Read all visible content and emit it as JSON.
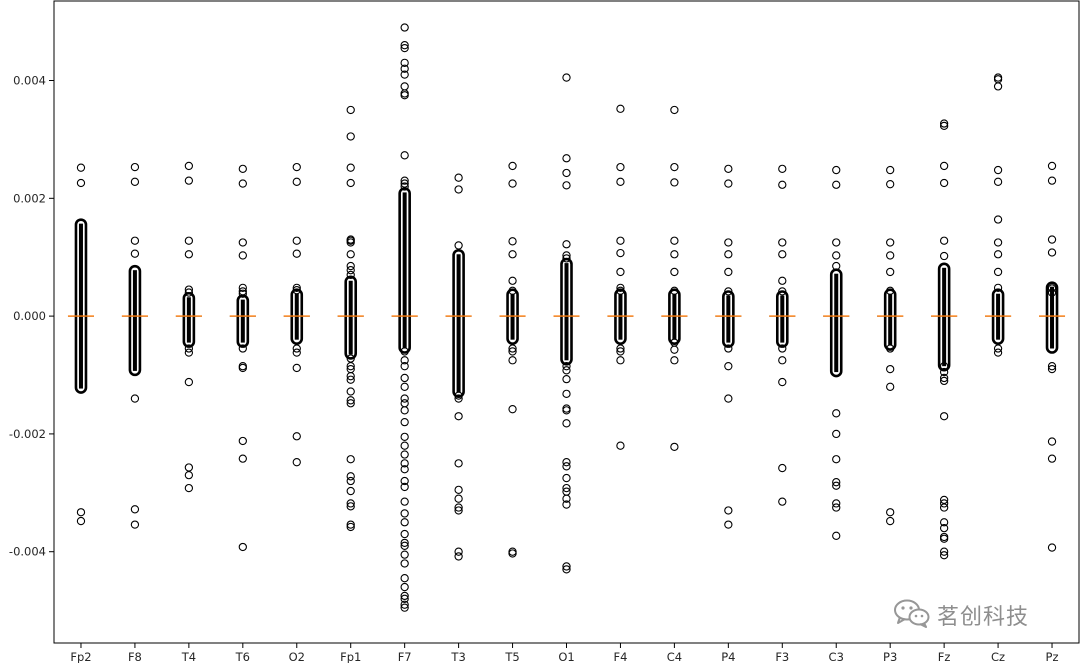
{
  "chart_data": {
    "type": "boxplot",
    "title": "",
    "xlabel": "",
    "ylabel": "",
    "ylim": [
      -0.00555,
      0.00535
    ],
    "yticks": [
      -0.004,
      -0.002,
      0.0,
      0.002,
      0.004
    ],
    "ytick_labels": [
      "-0.004",
      "-0.002",
      "0.000",
      "0.002",
      "0.004"
    ],
    "grid": false,
    "legend": "none",
    "colors": {
      "median": "#ff7f0e",
      "marker": "#000000",
      "axis": "#000000"
    },
    "categories": [
      "Fp2",
      "F8",
      "T4",
      "T6",
      "O2",
      "Fp1",
      "F7",
      "T3",
      "T5",
      "O1",
      "F4",
      "C4",
      "P4",
      "F3",
      "C3",
      "P3",
      "Fz",
      "Cz",
      "Pz"
    ],
    "boxes": [
      {
        "channel": "Fp2",
        "median": 0.0,
        "dense_range": [
          -0.00123,
          0.00157
        ],
        "outliers": [
          0.00252,
          0.00226,
          -0.00333,
          -0.00348
        ]
      },
      {
        "channel": "F8",
        "median": 0.0,
        "dense_range": [
          -0.00093,
          0.00078
        ],
        "outliers": [
          0.00253,
          0.00228,
          0.00128,
          0.00106,
          -0.0014,
          -0.00328,
          -0.00354
        ]
      },
      {
        "channel": "T4",
        "median": 0.0,
        "dense_range": [
          -0.00045,
          0.00032
        ],
        "outliers": [
          0.00255,
          0.0023,
          0.00128,
          0.00105,
          0.00045,
          0.0004,
          -0.00055,
          -0.00062,
          -0.00112,
          -0.00257,
          -0.0027,
          -0.00292
        ]
      },
      {
        "channel": "T6",
        "median": 0.0,
        "dense_range": [
          -0.00045,
          0.00028
        ],
        "outliers": [
          0.0025,
          0.00225,
          0.00125,
          0.00103,
          0.00048,
          0.00042,
          0.00038,
          -0.00055,
          -0.00085,
          -0.00088,
          -0.00212,
          -0.00242,
          -0.00392
        ]
      },
      {
        "channel": "O2",
        "median": 0.0,
        "dense_range": [
          -0.0004,
          0.00038
        ],
        "outliers": [
          0.00253,
          0.00228,
          0.00128,
          0.00106,
          0.00048,
          0.00044,
          -0.00055,
          -0.00062,
          -0.00088,
          -0.00204,
          -0.00248
        ]
      },
      {
        "channel": "Fp1",
        "median": 0.0,
        "dense_range": [
          -0.00065,
          0.0006
        ],
        "outliers": [
          0.0035,
          0.00305,
          0.00252,
          0.00226,
          0.0013,
          0.00128,
          0.00125,
          0.00105,
          0.00085,
          0.00078,
          0.0007,
          -0.00072,
          -0.00085,
          -0.0009,
          -0.00102,
          -0.00108,
          -0.00128,
          -0.00143,
          -0.00148,
          -0.00243,
          -0.00272,
          -0.0028,
          -0.00297,
          -0.00318,
          -0.00323,
          -0.00354,
          -0.00358
        ]
      },
      {
        "channel": "F7",
        "median": 0.0,
        "dense_range": [
          -0.00055,
          0.0021
        ],
        "outliers": [
          0.0049,
          0.0046,
          0.00455,
          0.0043,
          0.0042,
          0.0041,
          0.0039,
          0.00378,
          0.00375,
          0.00273,
          0.0023,
          0.00225,
          0.0022,
          -0.0006,
          -0.00075,
          -0.00085,
          -0.00105,
          -0.0012,
          -0.0014,
          -0.00148,
          -0.0016,
          -0.0018,
          -0.00205,
          -0.0022,
          -0.00235,
          -0.0025,
          -0.0026,
          -0.0028,
          -0.0029,
          -0.00315,
          -0.00335,
          -0.0035,
          -0.0037,
          -0.00385,
          -0.0039,
          -0.00405,
          -0.0042,
          -0.00445,
          -0.0046,
          -0.00475,
          -0.0048,
          -0.0049,
          -0.00495
        ]
      },
      {
        "channel": "T3",
        "median": 0.0,
        "dense_range": [
          -0.0013,
          0.00105
        ],
        "outliers": [
          0.00235,
          0.00215,
          0.0012,
          -0.00135,
          -0.0014,
          -0.0017,
          -0.0025,
          -0.00295,
          -0.0031,
          -0.00325,
          -0.0033,
          -0.004,
          -0.00408
        ]
      },
      {
        "channel": "T5",
        "median": 0.0,
        "dense_range": [
          -0.0004,
          0.00038
        ],
        "outliers": [
          0.00255,
          0.00225,
          0.00127,
          0.00105,
          0.0006,
          0.00043,
          -0.00055,
          -0.0006,
          -0.00075,
          -0.00158,
          -0.004,
          -0.00403
        ]
      },
      {
        "channel": "O1",
        "median": 0.0,
        "dense_range": [
          -0.00075,
          0.0009
        ],
        "outliers": [
          0.00405,
          0.00268,
          0.00243,
          0.00222,
          0.00122,
          0.00103,
          0.00098,
          -0.00085,
          -0.00092,
          -0.00107,
          -0.00132,
          -0.00157,
          -0.0016,
          -0.00182,
          -0.00248,
          -0.00255,
          -0.00275,
          -0.00292,
          -0.00298,
          -0.0031,
          -0.0032,
          -0.00425,
          -0.0043
        ]
      },
      {
        "channel": "F4",
        "median": 0.0,
        "dense_range": [
          -0.0004,
          0.00038
        ],
        "outliers": [
          0.00352,
          0.00253,
          0.00228,
          0.00128,
          0.00107,
          0.00075,
          0.00048,
          0.00043,
          -0.00055,
          -0.0006,
          -0.00075,
          -0.0022
        ]
      },
      {
        "channel": "C4",
        "median": 0.0,
        "dense_range": [
          -0.0004,
          0.00038
        ],
        "outliers": [
          0.0035,
          0.00253,
          0.00227,
          0.00128,
          0.00105,
          0.00075,
          0.00043,
          -0.00045,
          -0.00057,
          -0.00075,
          -0.00222
        ]
      },
      {
        "channel": "P4",
        "median": 0.0,
        "dense_range": [
          -0.00045,
          0.00035
        ],
        "outliers": [
          0.0025,
          0.00225,
          0.00125,
          0.00105,
          0.00075,
          0.00042,
          -0.00055,
          -0.00085,
          -0.0014,
          -0.0033,
          -0.00354
        ]
      },
      {
        "channel": "F3",
        "median": 0.0,
        "dense_range": [
          -0.00045,
          0.00035
        ],
        "outliers": [
          0.0025,
          0.00223,
          0.00125,
          0.00105,
          0.0006,
          0.00042,
          -0.00055,
          -0.00075,
          -0.00112,
          -0.00258,
          -0.00315
        ]
      },
      {
        "channel": "C3",
        "median": 0.0,
        "dense_range": [
          -0.00095,
          0.00072
        ],
        "outliers": [
          0.00248,
          0.00223,
          0.00125,
          0.00103,
          0.00085,
          -0.00165,
          -0.002,
          -0.00243,
          -0.00282,
          -0.00288,
          -0.00318,
          -0.00325,
          -0.00373
        ]
      },
      {
        "channel": "P3",
        "median": 0.0,
        "dense_range": [
          -0.0005,
          0.00038
        ],
        "outliers": [
          0.00248,
          0.00224,
          0.00125,
          0.00103,
          0.00075,
          0.00043,
          -0.00055,
          -0.0009,
          -0.0012,
          -0.00333,
          -0.00348
        ]
      },
      {
        "channel": "Fz",
        "median": 0.0,
        "dense_range": [
          -0.00085,
          0.00082
        ],
        "outliers": [
          0.00327,
          0.00323,
          0.00255,
          0.00226,
          0.00128,
          0.00102,
          -0.00085,
          -0.00095,
          -0.00105,
          -0.0011,
          -0.0017,
          -0.00312,
          -0.00318,
          -0.00325,
          -0.0035,
          -0.0036,
          -0.00375,
          -0.00378,
          -0.004,
          -0.00406
        ]
      },
      {
        "channel": "Cz",
        "median": 0.0,
        "dense_range": [
          -0.0004,
          0.00038
        ],
        "outliers": [
          0.00405,
          0.00402,
          0.0039,
          0.00248,
          0.00228,
          0.00164,
          0.00125,
          0.00105,
          0.00075,
          0.00048,
          -0.00055,
          -0.00062
        ]
      },
      {
        "channel": "Pz",
        "median": 0.0,
        "dense_range": [
          -0.00055,
          0.0005
        ],
        "outliers": [
          0.00255,
          0.0023,
          0.0013,
          0.00108,
          0.00047,
          0.0004,
          -0.00085,
          -0.0009,
          -0.00213,
          -0.00242,
          -0.00393
        ]
      }
    ]
  },
  "watermark": {
    "text": "茗创科技",
    "icon": "wechat-icon"
  }
}
